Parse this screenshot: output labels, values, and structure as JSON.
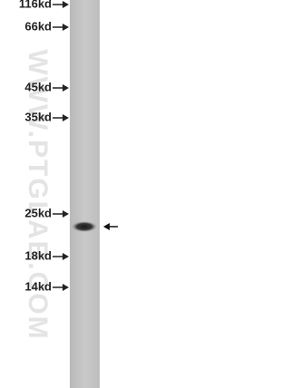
{
  "markers": [
    "116kd",
    "66kd",
    "45kd",
    "35kd",
    "25kd",
    "18kd",
    "14kd"
  ],
  "watermark": "WWW.PTGLAB.COM"
}
